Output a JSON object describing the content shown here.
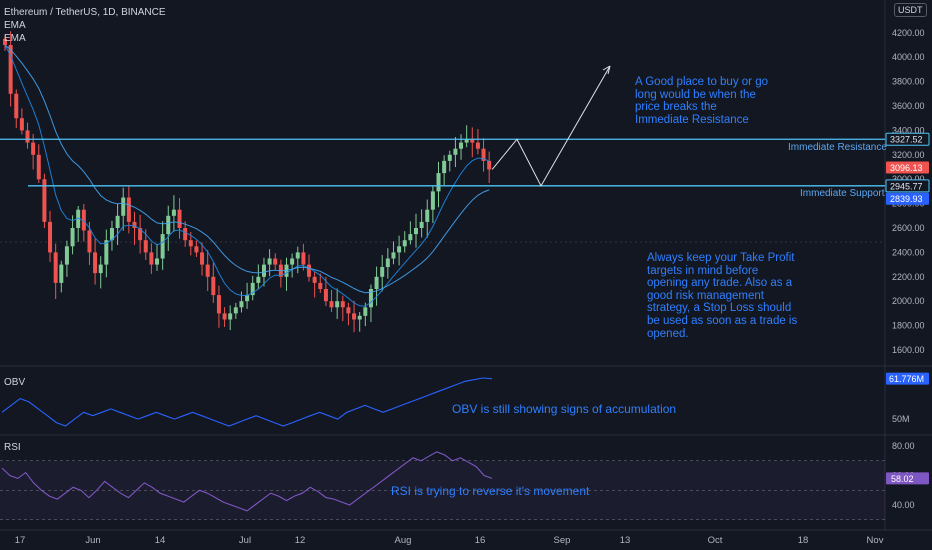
{
  "header": {
    "symbol": "Ethereum / TetherUS, 1D, BINANCE",
    "indicator1": "EMA",
    "indicator2": "EMA",
    "currency": "USDT"
  },
  "annotations": {
    "buy_note": [
      "A Good place to buy or go",
      "long would be when the",
      "price breaks the",
      "Immediate Resistance"
    ],
    "tp_note": [
      "Always keep your Take Profit",
      "targets in mind before",
      "opening any trade. Also as a",
      "good risk management",
      "strategy, a Stop Loss should",
      "be used as soon as a trade is",
      "opened."
    ],
    "obv_note": "OBV is still showing signs of accumulation",
    "rsi_note": "RSI is trying to reverse it's movement",
    "resistance_label": "Immediate Resistance",
    "support_label": "Immediate Support"
  },
  "panes": {
    "obv_title": "OBV",
    "rsi_title": "RSI"
  },
  "colors": {
    "background": "#131722",
    "up": "#26a69a",
    "up_body": "#81c995",
    "down": "#ef5350",
    "level_line": "#4fc3f7",
    "ema": "#2962ff",
    "obv_line": "#2962ff",
    "rsi_line": "#7e57c2",
    "annotation_text": "#2f7fff"
  },
  "chart_data": [
    {
      "type": "candlestick",
      "title": "Ethereum / TetherUS, 1D, BINANCE",
      "ylim": [
        1500,
        4300
      ],
      "y_ticks": [
        1600,
        1800,
        2000,
        2200,
        2400,
        2600,
        2800,
        3000,
        3200,
        3400,
        3600,
        3800,
        4000,
        4200
      ],
      "y_tick_labels": [
        "1600.00",
        "1800.00",
        "2000.00",
        "2200.00",
        "2400.00",
        "2600.00",
        "2800.00",
        "3000.00",
        "3200.00",
        "3400.00",
        "3600.00",
        "3800.00",
        "4000.00",
        "4200.00"
      ],
      "x_labels": [
        "17",
        "Jun",
        "14",
        "Jul",
        "12",
        "Aug",
        "16",
        "Sep",
        "13",
        "Oct",
        "18",
        "Nov"
      ],
      "price_labels": [
        {
          "text": "3327.52",
          "value": 3327.52,
          "style": "level"
        },
        {
          "text": "3096.13",
          "value": 3096.13,
          "style": "current"
        },
        {
          "text": "2945.77",
          "value": 2945.77,
          "style": "level"
        },
        {
          "text": "2839.93",
          "value": 2839.93,
          "style": "ema"
        }
      ],
      "levels": [
        {
          "name": "Immediate Resistance",
          "value": 3327.52
        },
        {
          "name": "Immediate Support",
          "value": 2945.77
        }
      ],
      "candles_start": "2021-05-12",
      "close": [
        4100,
        3700,
        3500,
        3400,
        3300,
        3200,
        3000,
        2650,
        2400,
        2150,
        2300,
        2450,
        2600,
        2750,
        2580,
        2400,
        2230,
        2300,
        2500,
        2600,
        2700,
        2850,
        2650,
        2600,
        2500,
        2400,
        2300,
        2350,
        2550,
        2700,
        2750,
        2600,
        2500,
        2450,
        2400,
        2300,
        2200,
        2050,
        1900,
        1850,
        1900,
        1950,
        2000,
        2050,
        2150,
        2200,
        2300,
        2350,
        2300,
        2200,
        2300,
        2350,
        2400,
        2300,
        2200,
        2150,
        2100,
        2000,
        1950,
        2000,
        1950,
        1900,
        1850,
        1880,
        1950,
        2100,
        2200,
        2280,
        2350,
        2400,
        2450,
        2500,
        2550,
        2600,
        2650,
        2750,
        2900,
        3050,
        3150,
        3200,
        3250,
        3300,
        3330,
        3300,
        3250,
        3150,
        3080
      ]
    },
    {
      "type": "line",
      "name": "OBV",
      "y_tick_labels": [
        "50M"
      ],
      "current_label": "61.776M",
      "values": [
        52,
        54,
        56,
        55,
        53,
        51,
        49,
        48,
        50,
        52,
        51,
        52,
        53,
        52,
        51,
        50,
        51,
        52,
        51,
        50,
        51,
        52,
        51,
        50,
        49,
        48,
        49,
        50,
        51,
        50,
        49,
        48,
        49,
        50,
        51,
        52,
        51,
        50,
        52,
        53,
        54,
        53,
        52,
        53,
        54,
        55,
        56,
        57,
        58,
        59,
        60,
        61,
        61.5,
        62,
        61.8
      ]
    },
    {
      "type": "line",
      "name": "RSI",
      "ylim": [
        25,
        85
      ],
      "y_ticks": [
        40,
        60,
        80
      ],
      "y_tick_labels": [
        "40.00",
        "60.00",
        "80.00"
      ],
      "bands": [
        30,
        50,
        70
      ],
      "current_label": "58.02",
      "values": [
        65,
        60,
        58,
        62,
        55,
        50,
        46,
        44,
        48,
        52,
        50,
        45,
        50,
        56,
        52,
        48,
        45,
        50,
        55,
        52,
        48,
        46,
        44,
        42,
        46,
        50,
        48,
        45,
        42,
        40,
        38,
        36,
        40,
        44,
        48,
        46,
        43,
        46,
        48,
        52,
        49,
        45,
        44,
        42,
        40,
        44,
        48,
        52,
        56,
        60,
        64,
        68,
        72,
        70,
        73,
        76,
        74,
        70,
        72,
        69,
        66,
        60,
        58
      ]
    }
  ]
}
